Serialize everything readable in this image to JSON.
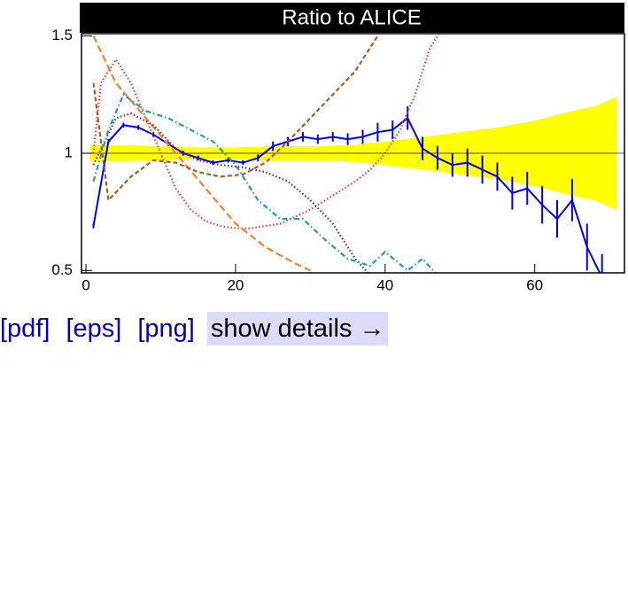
{
  "chart_data": {
    "type": "line",
    "title": "Ratio to ALICE",
    "xlim": [
      -0.6,
      72
    ],
    "ylim": [
      0.49,
      1.51
    ],
    "xticks": [
      0,
      20,
      40,
      60
    ],
    "yticks": [
      0.5,
      1,
      1.5
    ],
    "reference": 1,
    "band": {
      "color": "#ffff00",
      "x": [
        0.5,
        5,
        10,
        15,
        20,
        25,
        30,
        35,
        40,
        45,
        50,
        55,
        60,
        65,
        68,
        71
      ],
      "errors": [
        0.035,
        0.035,
        0.03,
        0.025,
        0.025,
        0.03,
        0.03,
        0.035,
        0.05,
        0.07,
        0.09,
        0.11,
        0.14,
        0.18,
        0.2,
        0.24
      ]
    },
    "series": [
      {
        "color": "#0000ff",
        "style": "solid",
        "x": [
          1,
          3,
          5,
          7,
          9,
          11,
          13,
          15,
          17,
          19,
          21,
          23,
          25,
          27,
          29,
          31,
          33,
          35,
          37,
          39,
          41,
          43,
          45,
          47,
          49,
          51,
          53,
          55,
          57,
          59,
          61,
          63,
          65,
          67,
          69
        ],
        "values": [
          0.69,
          1.05,
          1.12,
          1.11,
          1.08,
          1.04,
          1.0,
          0.98,
          0.96,
          0.97,
          0.96,
          0.98,
          1.03,
          1.05,
          1.07,
          1.06,
          1.07,
          1.06,
          1.07,
          1.09,
          1.1,
          1.15,
          1.02,
          0.98,
          0.95,
          0.96,
          0.93,
          0.9,
          0.83,
          0.85,
          0.78,
          0.72,
          0.8,
          0.6,
          0.47
        ],
        "errors": [
          0.01,
          0.01,
          0.01,
          0.01,
          0.01,
          0.01,
          0.01,
          0.01,
          0.01,
          0.01,
          0.01,
          0.015,
          0.02,
          0.02,
          0.02,
          0.02,
          0.02,
          0.025,
          0.03,
          0.04,
          0.04,
          0.05,
          0.05,
          0.05,
          0.05,
          0.06,
          0.06,
          0.06,
          0.07,
          0.07,
          0.08,
          0.08,
          0.09,
          0.1,
          0.1
        ]
      },
      {
        "color": "#ff3333",
        "style": "dotted",
        "x": [
          1,
          2,
          4,
          6,
          8,
          10,
          12,
          14,
          16,
          18,
          20,
          22,
          24,
          26,
          28,
          30,
          32,
          34,
          36,
          38,
          40,
          42,
          44,
          46,
          48
        ],
        "values": [
          1.0,
          1.3,
          1.4,
          1.3,
          1.15,
          1.0,
          0.85,
          0.76,
          0.71,
          0.69,
          0.68,
          0.68,
          0.69,
          0.7,
          0.73,
          0.76,
          0.8,
          0.84,
          0.88,
          0.93,
          1.0,
          1.1,
          1.25,
          1.45,
          1.55
        ]
      },
      {
        "color": "#ff7f27",
        "style": "longdash",
        "x": [
          1,
          4,
          8,
          12,
          16,
          20,
          24,
          28,
          30
        ],
        "values": [
          1.5,
          1.3,
          1.15,
          1.0,
          0.85,
          0.7,
          0.6,
          0.53,
          0.5
        ]
      },
      {
        "color": "#b05a1a",
        "style": "dashed",
        "x": [
          1,
          3,
          6,
          9,
          12,
          15,
          18,
          21,
          24,
          27,
          30,
          33,
          36,
          39
        ],
        "values": [
          1.3,
          0.8,
          0.9,
          0.97,
          0.96,
          0.92,
          0.9,
          0.91,
          0.96,
          1.05,
          1.15,
          1.25,
          1.35,
          1.5
        ]
      },
      {
        "color": "#802050",
        "style": "dotted",
        "x": [
          1,
          4,
          6,
          9,
          12,
          15,
          18,
          21,
          24,
          27,
          30,
          33,
          36,
          38
        ],
        "values": [
          0.95,
          1.15,
          1.17,
          1.12,
          1.02,
          0.97,
          0.95,
          0.94,
          0.92,
          0.88,
          0.8,
          0.7,
          0.55,
          0.48
        ]
      },
      {
        "color": "#20a0a0",
        "style": "dashdot",
        "x": [
          1,
          3,
          5,
          8,
          11,
          14,
          17,
          20,
          23,
          26,
          29,
          32,
          35,
          38,
          40,
          43,
          45,
          47
        ],
        "values": [
          0.88,
          1.1,
          1.25,
          1.18,
          1.15,
          1.1,
          1.05,
          0.95,
          0.8,
          0.72,
          0.72,
          0.63,
          0.55,
          0.52,
          0.58,
          0.5,
          0.55,
          0.48
        ]
      }
    ]
  },
  "links": [
    "[pdf]",
    "[eps]",
    "[png]",
    "show details →"
  ]
}
